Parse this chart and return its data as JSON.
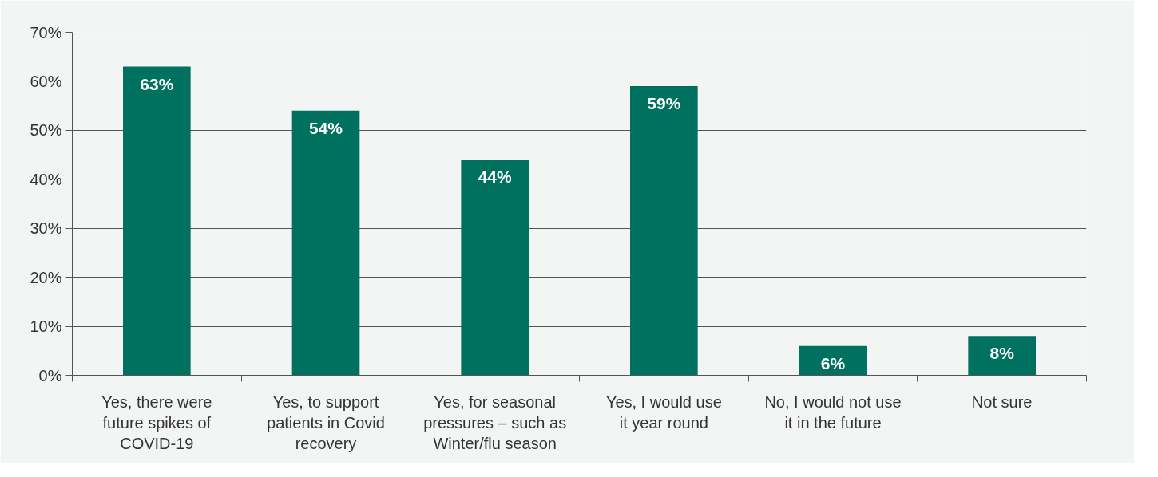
{
  "chart_data": {
    "type": "bar",
    "categories": [
      "Yes, there were\nfuture spikes of\nCOVID-19",
      "Yes, to support\npatients in Covid\nrecovery",
      "Yes, for seasonal\npressures – such as\nWinter/flu season",
      "Yes, I would use\nit year round",
      "No, I would not use\nit in the future",
      "Not sure"
    ],
    "values": [
      63,
      54,
      44,
      59,
      6,
      8
    ],
    "value_labels": [
      "63%",
      "54%",
      "44%",
      "59%",
      "6%",
      "8%"
    ],
    "color": "#00715f",
    "ylim": [
      0,
      70
    ],
    "yticks": [
      {
        "value": 0,
        "label": "0%"
      },
      {
        "value": 10,
        "label": "10%"
      },
      {
        "value": 20,
        "label": "20%"
      },
      {
        "value": 30,
        "label": "30%"
      },
      {
        "value": 40,
        "label": "40%"
      },
      {
        "value": 50,
        "label": "50%"
      },
      {
        "value": 60,
        "label": "60%"
      },
      {
        "value": 70,
        "label": "70%"
      }
    ],
    "grid": "y"
  }
}
